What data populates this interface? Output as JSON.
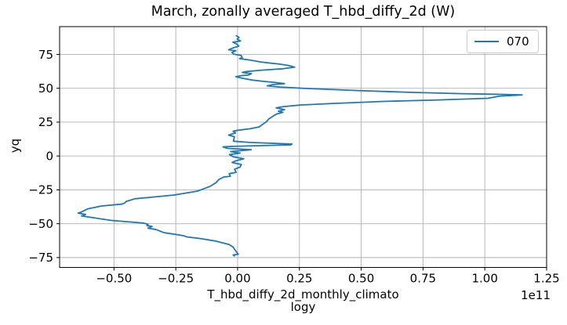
{
  "chart_data": {
    "type": "line",
    "title": "March, zonally averaged T_hbd_diffy_2d (W)",
    "xlabel": "T_hbd_diffy_2d_monthly_climatology",
    "xlabel_lines": [
      "T_hbd_diffy_2d_monthly_climato",
      "logy"
    ],
    "ylabel": "yq",
    "x_offset_text": "1e11",
    "x_unit_scale": 100000000000.0,
    "xlim": [
      -0.72,
      1.25
    ],
    "ylim": [
      -82.3,
      95.5
    ],
    "grid": true,
    "xticks": {
      "values": [
        -0.5,
        -0.25,
        0.0,
        0.25,
        0.5,
        0.75,
        1.0,
        1.25
      ],
      "labels": [
        "−0.50",
        "−0.25",
        "0.00",
        "0.25",
        "0.50",
        "0.75",
        "1.00",
        "1.25"
      ]
    },
    "yticks": {
      "values": [
        75,
        50,
        25,
        0,
        -25,
        -50,
        -75
      ],
      "labels": [
        "75",
        "50",
        "25",
        "0",
        "−25",
        "−50",
        "−75"
      ]
    },
    "legend": {
      "position": "upper right",
      "entries": [
        {
          "label": "070",
          "color": "#1f77b4"
        }
      ]
    },
    "colors": {
      "line": "#1f77b4",
      "grid": "#b0b0b0",
      "spine": "#000000",
      "text": "#000000",
      "legend_border": "#cbcbcb",
      "background": "#ffffff"
    },
    "series": [
      {
        "name": "070",
        "points_format": "[x_in_1e11_W, yq_degrees]",
        "points": [
          [
            -0.005,
            88.8
          ],
          [
            0.006,
            87.5
          ],
          [
            -0.002,
            86.3
          ],
          [
            0.012,
            84.9
          ],
          [
            -0.019,
            84.0
          ],
          [
            -0.002,
            82.5
          ],
          [
            0.005,
            81.1
          ],
          [
            -0.018,
            79.8
          ],
          [
            -0.036,
            78.4
          ],
          [
            -0.007,
            77.7
          ],
          [
            -0.023,
            76.5
          ],
          [
            -0.016,
            75.2
          ],
          [
            0.014,
            74.2
          ],
          [
            0.019,
            72.7
          ],
          [
            0.008,
            71.9
          ],
          [
            0.051,
            70.8
          ],
          [
            0.093,
            69.4
          ],
          [
            0.135,
            68.5
          ],
          [
            0.167,
            67.9
          ],
          [
            0.204,
            66.9
          ],
          [
            0.231,
            65.6
          ],
          [
            0.178,
            64.3
          ],
          [
            0.125,
            63.7
          ],
          [
            0.082,
            63.1
          ],
          [
            0.035,
            62.3
          ],
          [
            0.019,
            61.7
          ],
          [
            0.056,
            60.8
          ],
          [
            0.045,
            59.8
          ],
          [
            0.014,
            59.3
          ],
          [
            -0.007,
            58.5
          ],
          [
            0.019,
            57.4
          ],
          [
            0.061,
            56.0
          ],
          [
            0.104,
            55.1
          ],
          [
            0.151,
            54.3
          ],
          [
            0.19,
            53.4
          ],
          [
            0.145,
            52.8
          ],
          [
            0.12,
            51.8
          ],
          [
            0.17,
            50.9
          ],
          [
            0.273,
            49.9
          ],
          [
            0.484,
            48.3
          ],
          [
            0.696,
            47.0
          ],
          [
            0.907,
            46.0
          ],
          [
            1.066,
            45.5
          ],
          [
            1.151,
            45.1
          ],
          [
            1.06,
            44.2
          ],
          [
            1.013,
            42.6
          ],
          [
            0.802,
            41.3
          ],
          [
            0.59,
            40.3
          ],
          [
            0.378,
            38.7
          ],
          [
            0.252,
            37.6
          ],
          [
            0.183,
            36.4
          ],
          [
            0.156,
            35.5
          ],
          [
            0.19,
            34.2
          ],
          [
            0.165,
            33.0
          ],
          [
            0.183,
            32.2
          ],
          [
            0.158,
            31.0
          ],
          [
            0.14,
            29.0
          ],
          [
            0.125,
            27.2
          ],
          [
            0.12,
            25.9
          ],
          [
            0.114,
            24.9
          ],
          [
            0.1,
            23.2
          ],
          [
            0.088,
            21.5
          ],
          [
            0.051,
            20.1
          ],
          [
            0.002,
            19.0
          ],
          [
            -0.018,
            18.2
          ],
          [
            -0.008,
            17.0
          ],
          [
            -0.036,
            15.4
          ],
          [
            -0.013,
            14.2
          ],
          [
            -0.015,
            12.5
          ],
          [
            -0.017,
            10.9
          ],
          [
            0.05,
            10.0
          ],
          [
            0.22,
            8.8
          ],
          [
            0.216,
            8.2
          ],
          [
            -0.02,
            7.1
          ],
          [
            -0.059,
            6.7
          ],
          [
            -0.04,
            5.6
          ],
          [
            0.02,
            5.0
          ],
          [
            0.055,
            4.6
          ],
          [
            -0.028,
            3.3
          ],
          [
            0.01,
            2.1
          ],
          [
            -0.033,
            1.0
          ],
          [
            -0.017,
            -0.6
          ],
          [
            0.025,
            -2.1
          ],
          [
            -0.006,
            -3.5
          ],
          [
            -0.022,
            -4.8
          ],
          [
            0.015,
            -6.3
          ],
          [
            0.01,
            -8.2
          ],
          [
            -0.012,
            -9.8
          ],
          [
            -0.006,
            -12.1
          ],
          [
            -0.034,
            -13.1
          ],
          [
            -0.029,
            -15.0
          ],
          [
            -0.055,
            -15.5
          ],
          [
            -0.071,
            -16.9
          ],
          [
            -0.076,
            -17.4
          ],
          [
            -0.087,
            -19.7
          ],
          [
            -0.113,
            -22.6
          ],
          [
            -0.134,
            -24.0
          ],
          [
            -0.161,
            -25.9
          ],
          [
            -0.256,
            -28.8
          ],
          [
            -0.362,
            -30.7
          ],
          [
            -0.415,
            -31.6
          ],
          [
            -0.451,
            -33.6
          ],
          [
            -0.455,
            -34.5
          ],
          [
            -0.467,
            -35.5
          ],
          [
            -0.552,
            -37.0
          ],
          [
            -0.605,
            -39.0
          ],
          [
            -0.631,
            -41.3
          ],
          [
            -0.645,
            -42.2
          ],
          [
            -0.615,
            -43.2
          ],
          [
            -0.631,
            -44.3
          ],
          [
            -0.584,
            -45.6
          ],
          [
            -0.51,
            -47.6
          ],
          [
            -0.383,
            -49.5
          ],
          [
            -0.362,
            -50.4
          ],
          [
            -0.367,
            -51.4
          ],
          [
            -0.346,
            -52.0
          ],
          [
            -0.362,
            -53.3
          ],
          [
            -0.33,
            -54.3
          ],
          [
            -0.298,
            -56.6
          ],
          [
            -0.229,
            -58.5
          ],
          [
            -0.214,
            -59.1
          ],
          [
            -0.208,
            -59.7
          ],
          [
            -0.15,
            -61.0
          ],
          [
            -0.087,
            -62.9
          ],
          [
            -0.034,
            -65.4
          ],
          [
            -0.018,
            -67.3
          ],
          [
            -0.013,
            -68.7
          ],
          [
            -0.002,
            -71.5
          ],
          [
            0.003,
            -72.5
          ],
          [
            -0.018,
            -73.1
          ],
          [
            -0.013,
            -73.8
          ]
        ]
      }
    ]
  }
}
